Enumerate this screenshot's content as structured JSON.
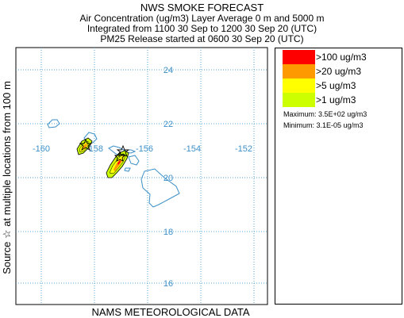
{
  "header": {
    "title": "NWS SMOKE FORECAST",
    "line1": "Air Concentration (ug/m3) Layer Average    0 m and  5000 m",
    "line2": "Integrated from 1100 30 Sep to 1200 30 Sep 20 (UTC)",
    "line3": "PM25 Release started at 0600 30 Sep 20 (UTC)"
  },
  "side_label": "Source ☆      at multiple locations        from   100 m",
  "footer": "NAMS METEOROLOGICAL DATA",
  "map": {
    "lon_labels": [
      "-160",
      "-158",
      "-156",
      "-154",
      "-152"
    ],
    "lat_labels": [
      "24",
      "22",
      "20",
      "18",
      "16"
    ],
    "coast_color": "#3c8fc7",
    "grid_color": "#56a7d6"
  },
  "legend": {
    "items": [
      {
        "label": ">100 ug/m3",
        "color": "#ff0000"
      },
      {
        "label": ">20 ug/m3",
        "color": "#ff9900"
      },
      {
        "label": ">5 ug/m3",
        "color": "#ffff00"
      },
      {
        "label": ">1 ug/m3",
        "color": "#ccff00"
      }
    ],
    "maximum": "Maximum: 3.5E+02 ug/m3",
    "minimum": "Minimum: 3.1E-05 ug/m3"
  }
}
